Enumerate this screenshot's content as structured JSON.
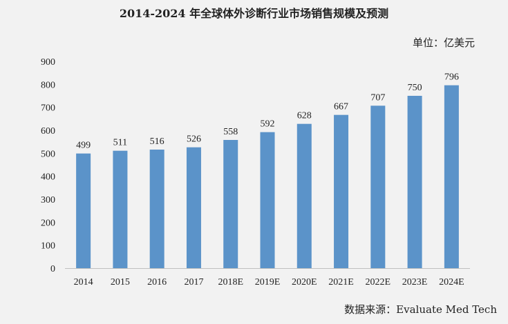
{
  "chart_data": {
    "type": "bar",
    "title": "2014-2024 年全球体外诊断行业市场销售规模及预测",
    "unit": "单位：亿美元",
    "source": "数据来源：Evaluate Med Tech",
    "categories": [
      "2014",
      "2015",
      "2016",
      "2017",
      "2018E",
      "2019E",
      "2020E",
      "2021E",
      "2022E",
      "2023E",
      "2024E"
    ],
    "values": [
      499,
      511,
      516,
      526,
      558,
      592,
      628,
      667,
      707,
      750,
      796
    ],
    "ylim": [
      0,
      900
    ],
    "yticks": [
      0,
      100,
      200,
      300,
      400,
      500,
      600,
      700,
      800,
      900
    ],
    "grid": false,
    "legend": false,
    "bar_color": "#5b93c9"
  }
}
